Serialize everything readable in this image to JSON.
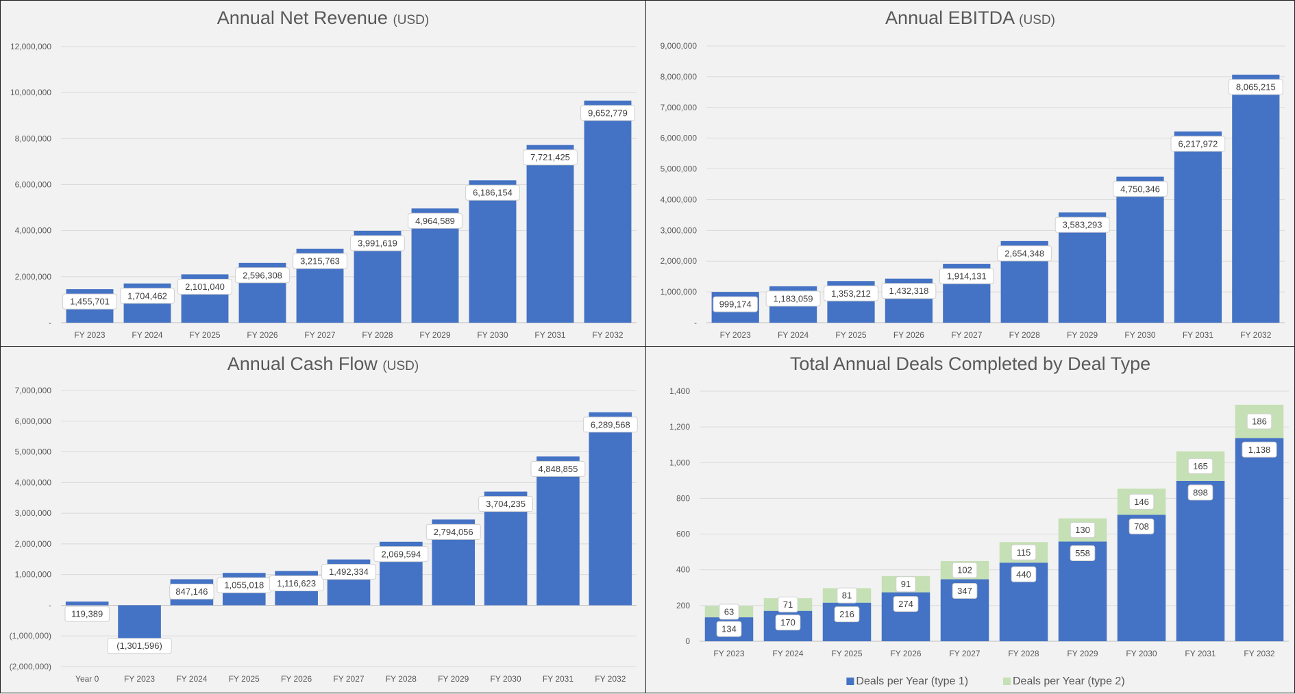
{
  "colors": {
    "bar": "#4472c4",
    "type2": "#c5e0b4",
    "grid": "#d9d9d9",
    "axis": "#bfbfbf",
    "label_bg": "#ffffff"
  },
  "chart_data": [
    {
      "id": "revenue",
      "type": "bar",
      "title": "Annual Net Revenue",
      "unit": "(USD)",
      "categories": [
        "FY 2023",
        "FY 2024",
        "FY 2025",
        "FY 2026",
        "FY 2027",
        "FY 2028",
        "FY 2029",
        "FY 2030",
        "FY 2031",
        "FY 2032"
      ],
      "values": [
        1455701,
        1704462,
        2101040,
        2596308,
        3215763,
        3991619,
        4964589,
        6186154,
        7721425,
        9652779
      ],
      "value_labels": [
        "1,455,701",
        "1,704,462",
        "2,101,040",
        "2,596,308",
        "3,215,763",
        "3,991,619",
        "4,964,589",
        "6,186,154",
        "7,721,425",
        "9,652,779"
      ],
      "ylim": [
        0,
        12000000
      ],
      "yticks": [
        0,
        2000000,
        4000000,
        6000000,
        8000000,
        10000000,
        12000000
      ],
      "ytick_labels": [
        "-",
        "2,000,000",
        "4,000,000",
        "6,000,000",
        "8,000,000",
        "10,000,000",
        "12,000,000"
      ],
      "grid": true
    },
    {
      "id": "ebitda",
      "type": "bar",
      "title": "Annual EBITDA",
      "unit": "(USD)",
      "categories": [
        "FY 2023",
        "FY 2024",
        "FY 2025",
        "FY 2026",
        "FY 2027",
        "FY 2028",
        "FY 2029",
        "FY 2030",
        "FY 2031",
        "FY 2032"
      ],
      "values": [
        999174,
        1183059,
        1353212,
        1432318,
        1914131,
        2654348,
        3583293,
        4750346,
        6217972,
        8065215
      ],
      "value_labels": [
        "999,174",
        "1,183,059",
        "1,353,212",
        "1,432,318",
        "1,914,131",
        "2,654,348",
        "3,583,293",
        "4,750,346",
        "6,217,972",
        "8,065,215"
      ],
      "ylim": [
        0,
        9000000
      ],
      "yticks": [
        0,
        1000000,
        2000000,
        3000000,
        4000000,
        5000000,
        6000000,
        7000000,
        8000000,
        9000000
      ],
      "ytick_labels": [
        "-",
        "1,000,000",
        "2,000,000",
        "3,000,000",
        "4,000,000",
        "5,000,000",
        "6,000,000",
        "7,000,000",
        "8,000,000",
        "9,000,000"
      ],
      "grid": true
    },
    {
      "id": "cashflow",
      "type": "bar",
      "title": "Annual Cash Flow",
      "unit": "(USD)",
      "categories": [
        "Year 0",
        "FY 2023",
        "FY 2024",
        "FY 2025",
        "FY 2026",
        "FY 2027",
        "FY 2028",
        "FY 2029",
        "FY 2030",
        "FY 2031",
        "FY 2032"
      ],
      "values": [
        119389,
        -1301596,
        847146,
        1055018,
        1116623,
        1492334,
        2069594,
        2794056,
        3704235,
        4848855,
        6289568
      ],
      "value_labels": [
        "119,389",
        "(1,301,596)",
        "847,146",
        "1,055,018",
        "1,116,623",
        "1,492,334",
        "2,069,594",
        "2,794,056",
        "3,704,235",
        "4,848,855",
        "6,289,568"
      ],
      "ylim": [
        -2000000,
        7000000
      ],
      "yticks": [
        -2000000,
        -1000000,
        0,
        1000000,
        2000000,
        3000000,
        4000000,
        5000000,
        6000000,
        7000000
      ],
      "ytick_labels": [
        "(2,000,000)",
        "(1,000,000)",
        "-",
        "1,000,000",
        "2,000,000",
        "3,000,000",
        "4,000,000",
        "5,000,000",
        "6,000,000",
        "7,000,000"
      ],
      "grid": true
    },
    {
      "id": "deals",
      "type": "bar",
      "stacked": true,
      "title": "Total Annual Deals Completed by Deal Type",
      "unit": "",
      "categories": [
        "FY 2023",
        "FY 2024",
        "FY 2025",
        "FY 2026",
        "FY 2027",
        "FY 2028",
        "FY 2029",
        "FY 2030",
        "FY 2031",
        "FY 2032"
      ],
      "series": [
        {
          "name": "Deals per Year (type 1)",
          "color": "#4472c4",
          "values": [
            134,
            170,
            216,
            274,
            347,
            440,
            558,
            708,
            898,
            1138
          ],
          "value_labels": [
            "134",
            "170",
            "216",
            "274",
            "347",
            "440",
            "558",
            "708",
            "898",
            "1,138"
          ]
        },
        {
          "name": "Deals per Year (type 2)",
          "color": "#c5e0b4",
          "values": [
            63,
            71,
            81,
            91,
            102,
            115,
            130,
            146,
            165,
            186
          ],
          "value_labels": [
            "63",
            "71",
            "81",
            "91",
            "102",
            "115",
            "130",
            "146",
            "165",
            "186"
          ]
        }
      ],
      "ylim": [
        0,
        1400
      ],
      "yticks": [
        0,
        200,
        400,
        600,
        800,
        1000,
        1200,
        1400
      ],
      "ytick_labels": [
        "0",
        "200",
        "400",
        "600",
        "800",
        "1,000",
        "1,200",
        "1,400"
      ],
      "grid": true,
      "legend": "bottom"
    }
  ]
}
